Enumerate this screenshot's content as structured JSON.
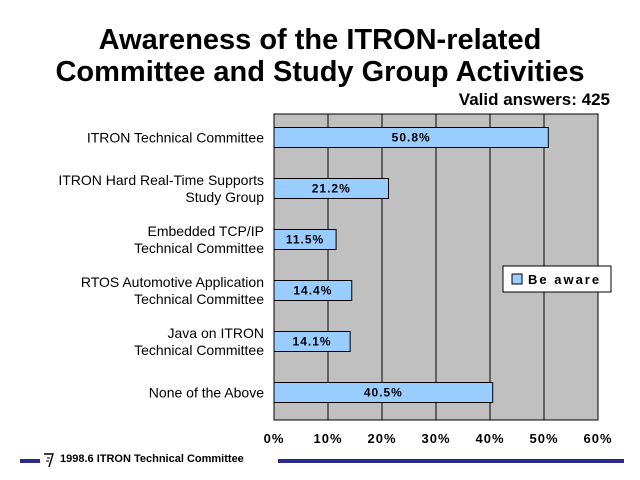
{
  "chart_data": {
    "type": "bar",
    "orientation": "horizontal",
    "title_line1": "Awareness of the ITRON-related",
    "title_line2": "Committee and Study Group Activities",
    "subtitle": "Valid answers: 425",
    "categories": [
      [
        "ITRON Technical Committee"
      ],
      [
        "ITRON Hard Real-Time Supports",
        "Study Group"
      ],
      [
        "Embedded TCP/IP",
        "Technical Committee"
      ],
      [
        "RTOS Automotive Application",
        "Technical Committee"
      ],
      [
        "Java on ITRON",
        "Technical Committee"
      ],
      [
        "None of the Above"
      ]
    ],
    "series": [
      {
        "name": "Be aware",
        "values": [
          50.8,
          21.2,
          11.5,
          14.4,
          14.1,
          40.5
        ],
        "labels": [
          "50.8%",
          "21.2%",
          "11.5%",
          "14.4%",
          "14.1%",
          "40.5%"
        ]
      }
    ],
    "xlim": [
      0,
      60
    ],
    "x_ticks": [
      0,
      10,
      20,
      30,
      40,
      50,
      60
    ],
    "x_tick_labels": [
      "0%",
      "10%",
      "20%",
      "30%",
      "40%",
      "50%",
      "60%"
    ],
    "grid": true,
    "legend_position": "right",
    "colors": {
      "plot_background": "#c0c0c0",
      "bar": "#99ccff",
      "bar_stroke": "#000000"
    }
  },
  "footer": {
    "text": "1998.6  ITRON Technical Committee",
    "line_color": "#2a2a8c"
  }
}
